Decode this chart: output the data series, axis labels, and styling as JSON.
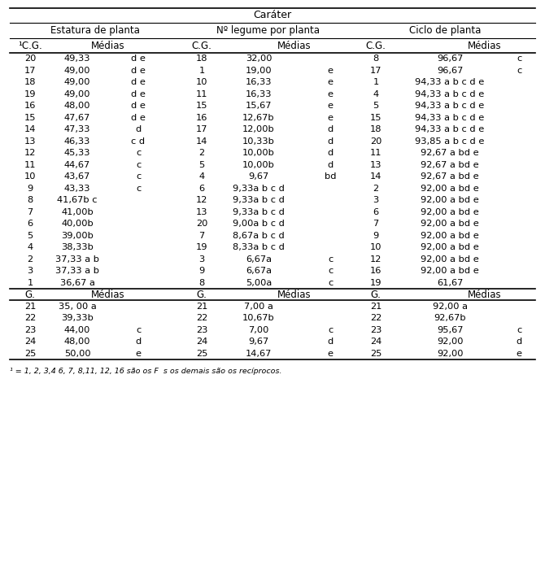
{
  "title": "Caráter",
  "col_headers": [
    "Estatura de planta",
    "Nº legume por planta",
    "Ciclo de planta"
  ],
  "sub_headers": [
    [
      "¹C.G.",
      "Médias"
    ],
    [
      "C.G.",
      "Médias"
    ],
    [
      "C.G.",
      "Médias"
    ]
  ],
  "data_rows": [
    [
      "20",
      "49,33",
      "d e",
      "18",
      "32,00",
      "",
      "8",
      "96,67",
      "c"
    ],
    [
      "17",
      "49,00",
      "d e",
      "1",
      "19,00",
      "e",
      "17",
      "96,67",
      "c"
    ],
    [
      "18",
      "49,00",
      "d e",
      "10",
      "16,33",
      "e",
      "1",
      "94,33 a b c d e",
      ""
    ],
    [
      "19",
      "49,00",
      "d e",
      "11",
      "16,33",
      "e",
      "4",
      "94,33 a b c d e",
      ""
    ],
    [
      "16",
      "48,00",
      "d e",
      "15",
      "15,67",
      "e",
      "5",
      "94,33 a b c d e",
      ""
    ],
    [
      "15",
      "47,67",
      "d e",
      "16",
      "12,67b",
      "e",
      "15",
      "94,33 a b c d e",
      ""
    ],
    [
      "14",
      "47,33",
      "d",
      "17",
      "12,00b",
      "d",
      "18",
      "94,33 a b c d e",
      ""
    ],
    [
      "13",
      "46,33",
      "c d",
      "14",
      "10,33b",
      "d",
      "20",
      "93,85 a b c d e",
      ""
    ],
    [
      "12",
      "45,33",
      "c",
      "2",
      "10,00b",
      "d",
      "11",
      "92,67 a bd e",
      ""
    ],
    [
      "11",
      "44,67",
      "c",
      "5",
      "10,00b",
      "d",
      "13",
      "92,67 a bd e",
      ""
    ],
    [
      "10",
      "43,67",
      "c",
      "4",
      "9,67",
      "bd",
      "14",
      "92,67 a bd e",
      ""
    ],
    [
      "9",
      "43,33",
      "c",
      "6",
      "9,33a b c d",
      "",
      "2",
      "92,00 a bd e",
      ""
    ],
    [
      "8",
      "41,67b c",
      "",
      "12",
      "9,33a b c d",
      "",
      "3",
      "92,00 a bd e",
      ""
    ],
    [
      "7",
      "41,00b",
      "",
      "13",
      "9,33a b c d",
      "",
      "6",
      "92,00 a bd e",
      ""
    ],
    [
      "6",
      "40,00b",
      "",
      "20",
      "9,00a b c d",
      "",
      "7",
      "92,00 a bd e",
      ""
    ],
    [
      "5",
      "39,00b",
      "",
      "7",
      "8,67a b c d",
      "",
      "9",
      "92,00 a bd e",
      ""
    ],
    [
      "4",
      "38,33b",
      "",
      "19",
      "8,33a b c d",
      "",
      "10",
      "92,00 a bd e",
      ""
    ],
    [
      "2",
      "37,33 a b",
      "",
      "3",
      "6,67a",
      "c",
      "12",
      "92,00 a bd e",
      ""
    ],
    [
      "3",
      "37,33 a b",
      "",
      "9",
      "6,67a",
      "c",
      "16",
      "92,00 a bd e",
      ""
    ],
    [
      "1",
      "36,67 a",
      "",
      "8",
      "5,00a",
      "c",
      "19",
      "61,67",
      ""
    ]
  ],
  "genitor_header": [
    [
      "G.",
      "Médias"
    ],
    [
      "G.",
      "Médias"
    ],
    [
      "G.",
      "Médias"
    ]
  ],
  "genitor_rows": [
    [
      "21",
      "35, 00 a",
      "",
      "21",
      "7,00 a",
      "",
      "21",
      "92,00 a",
      ""
    ],
    [
      "22",
      "39,33b",
      "",
      "22",
      "10,67b",
      "",
      "22",
      "92,67b",
      ""
    ],
    [
      "23",
      "44,00",
      "c",
      "23",
      "7,00",
      "c",
      "23",
      "95,67",
      "c"
    ],
    [
      "24",
      "48,00",
      "d",
      "24",
      "9,67",
      "d",
      "24",
      "92,00",
      "d"
    ],
    [
      "25",
      "50,00",
      "e",
      "25",
      "14,67",
      "e",
      "25",
      "92,00",
      "e"
    ]
  ],
  "footnote": "¹ = 1, 2, 3,4 6, 7, 8,11, 12, 16 são os F  s os demais são os recíprocos."
}
